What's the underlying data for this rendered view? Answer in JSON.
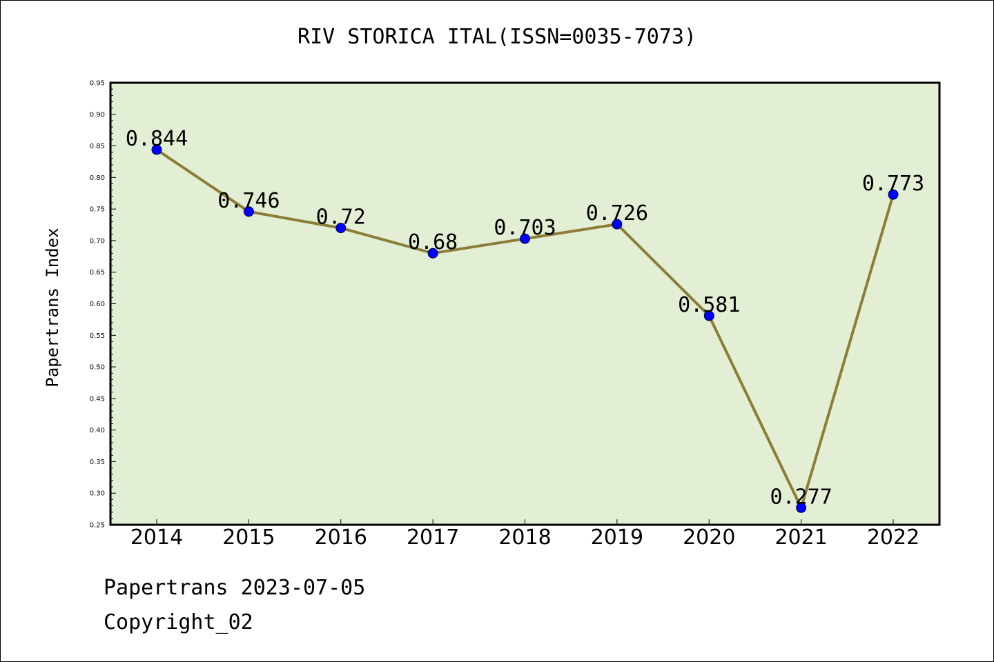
{
  "chart_data": {
    "type": "line",
    "title": "RIV STORICA ITAL(ISSN=0035-7073)",
    "xlabel": "",
    "ylabel": "Papertrans Index",
    "categories": [
      "2014",
      "2015",
      "2016",
      "2017",
      "2018",
      "2019",
      "2020",
      "2021",
      "2022"
    ],
    "values": [
      0.844,
      0.746,
      0.72,
      0.68,
      0.703,
      0.726,
      0.581,
      0.277,
      0.773
    ],
    "data_labels": [
      "0.844",
      "0.746",
      "0.72",
      "0.68",
      "0.703",
      "0.726",
      "0.581",
      "0.277",
      "0.773"
    ],
    "ylim": [
      0.25,
      0.95
    ],
    "yticks": [
      "0.25",
      "0.30",
      "0.35",
      "0.40",
      "0.45",
      "0.50",
      "0.55",
      "0.60",
      "0.65",
      "0.70",
      "0.75",
      "0.80",
      "0.85",
      "0.90",
      "0.95"
    ],
    "grid": false,
    "colors": {
      "plot_background": "#e2efd5",
      "line": "#8b7d35",
      "marker": "#0000ff"
    }
  },
  "footer": {
    "source": "Papertrans 2023-07-05",
    "copyright": "Copyright_02"
  }
}
